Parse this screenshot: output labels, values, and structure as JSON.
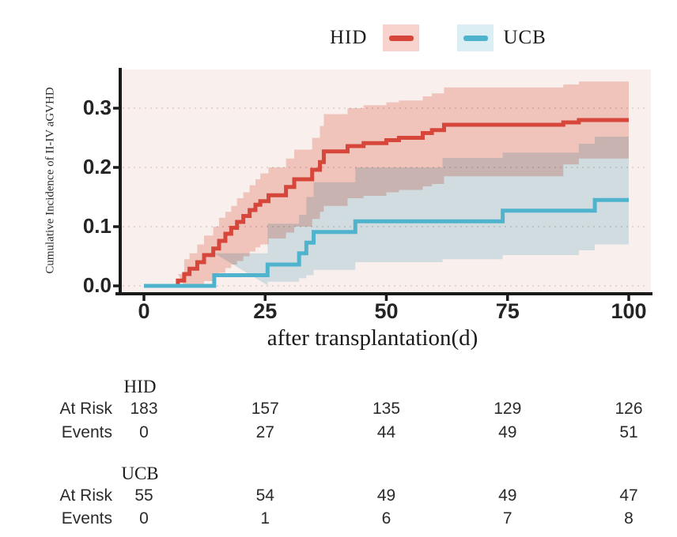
{
  "legend": {
    "items": [
      {
        "label": "HID",
        "line_color": "#d6463a",
        "key_bg": "#f8d3cd"
      },
      {
        "label": "UCB",
        "line_color": "#4fb3cd",
        "key_bg": "#daeef3"
      }
    ]
  },
  "chart_data": {
    "type": "line",
    "chart_kind": "cumulative-incidence-step-curves-with-confidence-bands",
    "title": "",
    "xlabel": "after transplantation(d)",
    "ylabel": "Cumulative Incidence of II-IV aGVHD",
    "x_ticks": [
      "0",
      "25",
      "50",
      "75",
      "100"
    ],
    "x_tick_values": [
      0,
      25,
      50,
      75,
      100
    ],
    "y_ticks": [
      "0.0",
      "0.1",
      "0.2",
      "0.3"
    ],
    "y_tick_values": [
      0,
      0.1,
      0.2,
      0.3
    ],
    "ylim": [
      0,
      0.365
    ],
    "x_end": 100,
    "grid": "horizontal-dashed",
    "legend_position": "top-center",
    "colors": {
      "panel_bg": "#f9f0ee",
      "grid": "#d8cbca",
      "axis": "#1a1a1a"
    },
    "series": [
      {
        "name": "HID",
        "color": "#d6463a",
        "band_color": "#f6cfc9",
        "steps": [
          [
            0,
            0
          ],
          [
            7,
            0.009
          ],
          [
            8.3,
            0.02
          ],
          [
            9.4,
            0.029
          ],
          [
            11,
            0.04
          ],
          [
            12.4,
            0.052
          ],
          [
            14.3,
            0.063
          ],
          [
            15.5,
            0.076
          ],
          [
            16.8,
            0.088
          ],
          [
            18,
            0.098
          ],
          [
            19.2,
            0.108
          ],
          [
            20.5,
            0.118
          ],
          [
            21.8,
            0.128
          ],
          [
            23,
            0.137
          ],
          [
            24,
            0.143
          ],
          [
            25.7,
            0.153
          ],
          [
            29.3,
            0.167
          ],
          [
            31,
            0.18
          ],
          [
            34.7,
            0.196
          ],
          [
            36.3,
            0.209
          ],
          [
            37.1,
            0.227
          ],
          [
            42,
            0.236
          ],
          [
            45.3,
            0.241
          ],
          [
            50,
            0.246
          ],
          [
            52.6,
            0.25
          ],
          [
            57.5,
            0.258
          ],
          [
            59.4,
            0.263
          ],
          [
            61.9,
            0.272
          ],
          [
            86.5,
            0.276
          ],
          [
            89.7,
            0.28
          ]
        ],
        "band": [
          [
            7,
            0,
            0.02
          ],
          [
            8.3,
            0,
            0.045
          ],
          [
            9.4,
            0,
            0.055
          ],
          [
            11,
            0.003,
            0.07
          ],
          [
            12.4,
            0.008,
            0.085
          ],
          [
            14.3,
            0.015,
            0.1
          ],
          [
            15.5,
            0.022,
            0.115
          ],
          [
            16.8,
            0.03,
            0.125
          ],
          [
            18,
            0.036,
            0.135
          ],
          [
            19.2,
            0.042,
            0.148
          ],
          [
            20.5,
            0.05,
            0.158
          ],
          [
            21.8,
            0.058,
            0.17
          ],
          [
            23,
            0.065,
            0.18
          ],
          [
            24,
            0.07,
            0.19
          ],
          [
            25.7,
            0.08,
            0.2
          ],
          [
            29.3,
            0.09,
            0.215
          ],
          [
            31,
            0.1,
            0.23
          ],
          [
            34.7,
            0.113,
            0.25
          ],
          [
            36.3,
            0.125,
            0.27
          ],
          [
            37.1,
            0.135,
            0.29
          ],
          [
            42,
            0.148,
            0.3
          ],
          [
            45.3,
            0.152,
            0.305
          ],
          [
            50,
            0.158,
            0.31
          ],
          [
            52.6,
            0.162,
            0.313
          ],
          [
            57.5,
            0.168,
            0.32
          ],
          [
            59.4,
            0.172,
            0.325
          ],
          [
            61.9,
            0.185,
            0.335
          ],
          [
            86.5,
            0.205,
            0.34
          ],
          [
            89.7,
            0.215,
            0.345
          ]
        ]
      },
      {
        "name": "UCB",
        "color": "#4fb3cd",
        "band_color": "#d6eaf0",
        "steps": [
          [
            0,
            0
          ],
          [
            14.5,
            0.018
          ],
          [
            25.5,
            0.036
          ],
          [
            32,
            0.055
          ],
          [
            33.5,
            0.073
          ],
          [
            35,
            0.091
          ],
          [
            43.6,
            0.109
          ],
          [
            74,
            0.127
          ],
          [
            93,
            0.145
          ]
        ],
        "band": [
          [
            14.5,
            0.001,
            0.055
          ],
          [
            25.5,
            0.007,
            0.105
          ],
          [
            32,
            0.013,
            0.12
          ],
          [
            33.5,
            0.018,
            0.15
          ],
          [
            35,
            0.027,
            0.175
          ],
          [
            43.6,
            0.04,
            0.2
          ],
          [
            61.6,
            0.045,
            0.216
          ],
          [
            74,
            0.052,
            0.225
          ],
          [
            89.7,
            0.06,
            0.24
          ],
          [
            93,
            0.07,
            0.252
          ]
        ]
      }
    ]
  },
  "risk_table": {
    "groups": [
      {
        "name": "HID",
        "rows": [
          {
            "label": "At Risk",
            "values": [
              "183",
              "157",
              "135",
              "129",
              "126"
            ]
          },
          {
            "label": "Events",
            "values": [
              "0",
              "27",
              "44",
              "49",
              "51"
            ]
          }
        ]
      },
      {
        "name": "UCB",
        "rows": [
          {
            "label": "At Risk",
            "values": [
              "55",
              "54",
              "49",
              "49",
              "47"
            ]
          },
          {
            "label": "Events",
            "values": [
              "0",
              "1",
              "6",
              "7",
              "8"
            ]
          }
        ]
      }
    ]
  }
}
